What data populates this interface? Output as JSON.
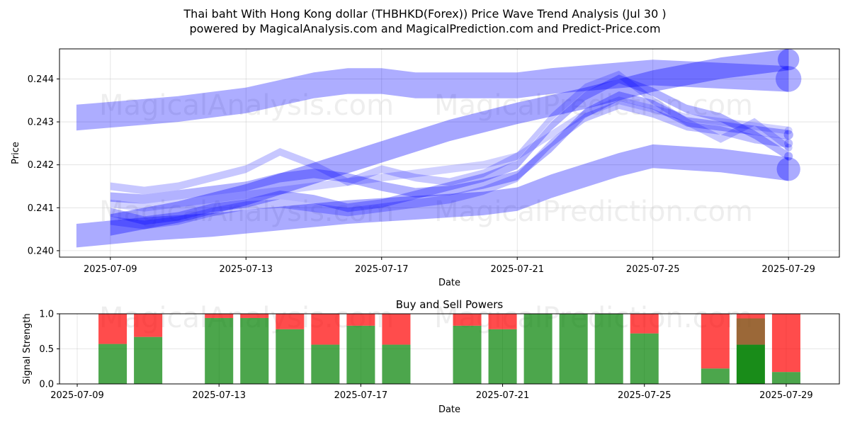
{
  "header": {
    "title": "Thai baht With Hong Kong dollar (THBHKD(Forex)) Price Wave Trend Analysis (Jul 30 )",
    "subtitle": "powered by MagicalAnalysis.com and MagicalPrediction.com and Predict-Price.com"
  },
  "watermarks": [
    "MagicalAnalysis.com",
    "MagicalPrediction.com"
  ],
  "colors": {
    "wave": "#0000ff",
    "buy": "#008000",
    "sell": "#ff0000",
    "grid": "#b0b0b0"
  },
  "chart_data": [
    {
      "type": "area",
      "title": "",
      "xlabel": "Date",
      "ylabel": "Price",
      "x_range": [
        "2025-07-07T12:00",
        "2025-07-30T12:00"
      ],
      "ylim": [
        0.23985,
        0.2447
      ],
      "x_ticks": [
        "2025-07-09",
        "2025-07-13",
        "2025-07-17",
        "2025-07-21",
        "2025-07-25",
        "2025-07-29"
      ],
      "y_ticks": [
        "0.240",
        "0.241",
        "0.242",
        "0.243",
        "0.244"
      ],
      "grid": true,
      "series": [
        {
          "x": [
            "2025-07-08",
            "2025-07-11",
            "2025-07-13",
            "2025-07-15",
            "2025-07-16",
            "2025-07-17",
            "2025-07-18",
            "2025-07-20",
            "2025-07-21",
            "2025-07-22",
            "2025-07-25",
            "2025-07-29"
          ],
          "y": [
            0.2431,
            0.2433,
            0.2435,
            0.24385,
            0.24395,
            0.24395,
            0.24385,
            0.24385,
            0.24385,
            0.24395,
            0.24415,
            0.244
          ],
          "band": 0.0006,
          "opacity": 0.32
        },
        {
          "x": [
            "2025-07-09",
            "2025-07-11",
            "2025-07-13",
            "2025-07-15",
            "2025-07-17",
            "2025-07-19",
            "2025-07-21",
            "2025-07-23",
            "2025-07-25",
            "2025-07-27",
            "2025-07-29"
          ],
          "y": [
            0.2406,
            0.2409,
            0.2413,
            0.2418,
            0.2423,
            0.2428,
            0.2432,
            0.24355,
            0.24395,
            0.24425,
            0.24445
          ],
          "band": 0.0005,
          "opacity": 0.35
        },
        {
          "x": [
            "2025-07-08",
            "2025-07-10",
            "2025-07-12",
            "2025-07-14",
            "2025-07-16",
            "2025-07-18",
            "2025-07-20",
            "2025-07-21",
            "2025-07-22",
            "2025-07-24",
            "2025-07-25",
            "2025-07-27",
            "2025-07-29"
          ],
          "y": [
            0.24035,
            0.2405,
            0.2406,
            0.24075,
            0.2409,
            0.241,
            0.2411,
            0.2412,
            0.2415,
            0.242,
            0.2422,
            0.2421,
            0.2419
          ],
          "band": 0.00055,
          "opacity": 0.33
        },
        {
          "x": [
            "2025-07-09",
            "2025-07-10",
            "2025-07-11",
            "2025-07-12",
            "2025-07-13",
            "2025-07-14",
            "2025-07-15",
            "2025-07-16",
            "2025-07-17",
            "2025-07-18",
            "2025-07-19",
            "2025-07-20",
            "2025-07-21",
            "2025-07-22",
            "2025-07-23",
            "2025-07-24",
            "2025-07-25",
            "2025-07-26",
            "2025-07-27",
            "2025-07-28",
            "2025-07-29"
          ],
          "y": [
            0.24125,
            0.2412,
            0.2413,
            0.2414,
            0.2415,
            0.2417,
            0.2418,
            0.2417,
            0.2415,
            0.24135,
            0.2414,
            0.24155,
            0.24175,
            0.2424,
            0.2432,
            0.2436,
            0.2434,
            0.243,
            0.2429,
            0.2428,
            0.2427
          ],
          "band": 0.00022,
          "opacity": 0.3
        },
        {
          "x": [
            "2025-07-09",
            "2025-07-10",
            "2025-07-11",
            "2025-07-12",
            "2025-07-13",
            "2025-07-14",
            "2025-07-15",
            "2025-07-16",
            "2025-07-17",
            "2025-07-18",
            "2025-07-19",
            "2025-07-20",
            "2025-07-21",
            "2025-07-22",
            "2025-07-23",
            "2025-07-24",
            "2025-07-25",
            "2025-07-26",
            "2025-07-27",
            "2025-07-28",
            "2025-07-29"
          ],
          "y": [
            0.2409,
            0.2407,
            0.2408,
            0.241,
            0.2411,
            0.2413,
            0.2412,
            0.241,
            0.2411,
            0.2413,
            0.2415,
            0.2417,
            0.242,
            0.2429,
            0.2436,
            0.244,
            0.2437,
            0.2433,
            0.2431,
            0.2427,
            0.2422
          ],
          "band": 0.0002,
          "opacity": 0.3
        },
        {
          "x": [
            "2025-07-09",
            "2025-07-10",
            "2025-07-11",
            "2025-07-12",
            "2025-07-13",
            "2025-07-14",
            "2025-07-15",
            "2025-07-16",
            "2025-07-17",
            "2025-07-18",
            "2025-07-19",
            "2025-07-20",
            "2025-07-21",
            "2025-07-22",
            "2025-07-23",
            "2025-07-24",
            "2025-07-25",
            "2025-07-26",
            "2025-07-27",
            "2025-07-28",
            "2025-07-29"
          ],
          "y": [
            0.2415,
            0.2414,
            0.2415,
            0.2417,
            0.2419,
            0.2423,
            0.242,
            0.2416,
            0.2419,
            0.2417,
            0.2416,
            0.2418,
            0.2422,
            0.2431,
            0.2438,
            0.2441,
            0.2435,
            0.243,
            0.2426,
            0.243,
            0.2424
          ],
          "band": 0.00018,
          "opacity": 0.22
        },
        {
          "x": [
            "2025-07-09",
            "2025-07-10",
            "2025-07-11",
            "2025-07-12",
            "2025-07-13",
            "2025-07-14",
            "2025-07-15",
            "2025-07-16",
            "2025-07-17",
            "2025-07-18",
            "2025-07-19",
            "2025-07-20",
            "2025-07-21",
            "2025-07-22",
            "2025-07-23",
            "2025-07-24",
            "2025-07-25",
            "2025-07-26",
            "2025-07-27",
            "2025-07-28",
            "2025-07-29"
          ],
          "y": [
            0.2407,
            0.2406,
            0.2407,
            0.2409,
            0.24105,
            0.2411,
            0.241,
            0.2409,
            0.241,
            0.2411,
            0.2412,
            0.2414,
            0.2417,
            0.2425,
            0.2431,
            0.2434,
            0.2432,
            0.2429,
            0.2428,
            0.2426,
            0.2425
          ],
          "band": 0.0002,
          "opacity": 0.25
        },
        {
          "x": [
            "2025-07-09",
            "2025-07-10",
            "2025-07-11",
            "2025-07-12",
            "2025-07-13",
            "2025-07-14",
            "2025-07-15",
            "2025-07-16",
            "2025-07-17",
            "2025-07-18",
            "2025-07-19",
            "2025-07-20",
            "2025-07-21",
            "2025-07-22",
            "2025-07-23",
            "2025-07-24",
            "2025-07-25",
            "2025-07-26",
            "2025-07-27",
            "2025-07-28",
            "2025-07-29"
          ],
          "y": [
            0.2411,
            0.241,
            0.2411,
            0.2412,
            0.2413,
            0.2414,
            0.2415,
            0.2416,
            0.2417,
            0.2418,
            0.2419,
            0.242,
            0.2422,
            0.2427,
            0.2432,
            0.2435,
            0.2433,
            0.2431,
            0.243,
            0.2429,
            0.2428
          ],
          "band": 0.00018,
          "opacity": 0.18
        }
      ]
    },
    {
      "type": "bar",
      "title": "Buy and Sell Powers",
      "xlabel": "Date",
      "ylabel": "Signal Strength",
      "ylim": [
        0,
        1
      ],
      "x_range": [
        "2025-07-08T12:00",
        "2025-07-30T12:00"
      ],
      "x_ticks": [
        "2025-07-09",
        "2025-07-13",
        "2025-07-17",
        "2025-07-21",
        "2025-07-25",
        "2025-07-29"
      ],
      "y_ticks": [
        "0.0",
        "0.5",
        "1.0"
      ],
      "grid": true,
      "bars": [
        {
          "date": "2025-07-10",
          "buy": 0.57
        },
        {
          "date": "2025-07-11",
          "buy": 0.67
        },
        {
          "date": "2025-07-13",
          "buy": 0.94
        },
        {
          "date": "2025-07-14",
          "buy": 0.94
        },
        {
          "date": "2025-07-15",
          "buy": 0.78
        },
        {
          "date": "2025-07-16",
          "buy": 0.56
        },
        {
          "date": "2025-07-17",
          "buy": 0.83
        },
        {
          "date": "2025-07-18",
          "buy": 0.56
        },
        {
          "date": "2025-07-20",
          "buy": 0.83
        },
        {
          "date": "2025-07-21",
          "buy": 0.78
        },
        {
          "date": "2025-07-22",
          "buy": 1.0
        },
        {
          "date": "2025-07-23",
          "buy": 1.0
        },
        {
          "date": "2025-07-24",
          "buy": 1.0
        },
        {
          "date": "2025-07-25",
          "buy": 0.72
        },
        {
          "date": "2025-07-27",
          "buy": 0.22
        },
        {
          "date": "2025-07-28",
          "buy": 0.56,
          "highlight": true
        },
        {
          "date": "2025-07-29",
          "buy": 0.17
        }
      ]
    }
  ]
}
